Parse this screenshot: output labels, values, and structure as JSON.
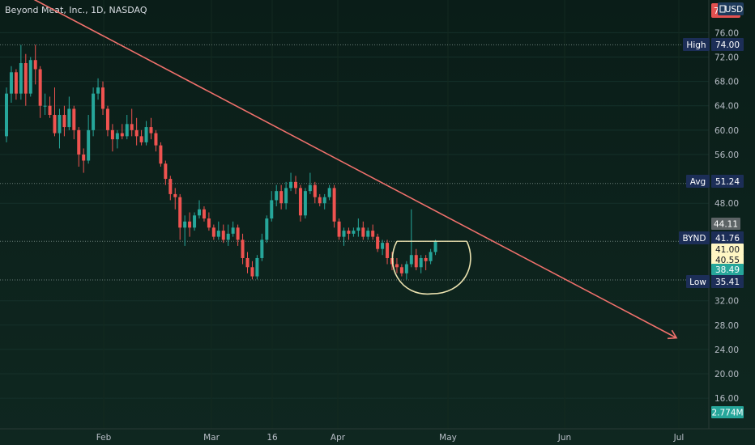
{
  "header": {
    "title": "Beyond Meat, Inc., 1D, NASDAQ",
    "currency": "USD",
    "top_tag": "79.52"
  },
  "chart_data": {
    "type": "candlestick",
    "symbol": "BYND",
    "title": "Beyond Meat, Inc., 1D, NASDAQ",
    "currency": "USD",
    "y_ticks": [
      16,
      20,
      24,
      28,
      32,
      48,
      56,
      60,
      64,
      68,
      72,
      76
    ],
    "y_range": [
      13.5,
      79.5
    ],
    "x_ticks": [
      "Feb",
      "Mar",
      "16",
      "Apr",
      "May",
      "Jun",
      "Jul"
    ],
    "price_tags": {
      "high": {
        "label": "High",
        "value": "74.00"
      },
      "avg": {
        "label": "Avg",
        "value": "51.24"
      },
      "last": {
        "label": "BYND",
        "value": "41.76"
      },
      "low": {
        "label": "Low",
        "value": "35.41"
      },
      "ref": "44.11",
      "high_level": "41.00",
      "mid_level": "40.55",
      "low_level": "38.49"
    },
    "volume": "2.774M",
    "colors": {
      "up": "#26a69a",
      "down": "#ef5350",
      "trendline": "#f0716c",
      "annotation": "#ece3b0"
    },
    "candles": [
      [
        59.0,
        67.0,
        58.0,
        66.0
      ],
      [
        66.0,
        70.5,
        64.5,
        69.5
      ],
      [
        69.5,
        70.0,
        65.0,
        66.0
      ],
      [
        66.0,
        74.0,
        65.0,
        71.0
      ],
      [
        71.0,
        72.5,
        64.0,
        66.0
      ],
      [
        66.0,
        72.0,
        65.5,
        71.5
      ],
      [
        71.5,
        74.0,
        67.5,
        70.0
      ],
      [
        70.0,
        70.5,
        62.0,
        64.0
      ],
      [
        64.0,
        66.0,
        62.5,
        64.0
      ],
      [
        64.0,
        65.5,
        62.0,
        62.5
      ],
      [
        62.5,
        67.0,
        59.0,
        59.5
      ],
      [
        59.5,
        63.5,
        57.0,
        62.5
      ],
      [
        62.5,
        64.0,
        59.0,
        60.5
      ],
      [
        60.5,
        65.5,
        60.0,
        63.5
      ],
      [
        63.5,
        64.0,
        58.5,
        60.0
      ],
      [
        60.0,
        60.5,
        54.0,
        56.0
      ],
      [
        56.0,
        57.0,
        53.0,
        55.0
      ],
      [
        55.0,
        62.5,
        54.5,
        60.0
      ],
      [
        60.0,
        67.0,
        59.0,
        66.0
      ],
      [
        66.0,
        68.5,
        65.0,
        67.0
      ],
      [
        67.0,
        68.0,
        62.5,
        63.5
      ],
      [
        63.5,
        64.0,
        59.0,
        60.0
      ],
      [
        60.0,
        61.0,
        56.5,
        58.5
      ],
      [
        58.5,
        60.0,
        57.0,
        59.5
      ],
      [
        59.5,
        61.0,
        58.5,
        59.0
      ],
      [
        59.0,
        62.5,
        58.5,
        61.0
      ],
      [
        61.0,
        63.5,
        59.0,
        60.0
      ],
      [
        60.0,
        62.0,
        57.5,
        59.0
      ],
      [
        59.0,
        60.0,
        57.5,
        58.0
      ],
      [
        58.0,
        61.5,
        57.5,
        60.5
      ],
      [
        60.5,
        62.0,
        58.5,
        59.5
      ],
      [
        59.5,
        60.0,
        56.5,
        57.5
      ],
      [
        57.5,
        58.0,
        54.0,
        54.5
      ],
      [
        54.5,
        55.0,
        51.0,
        52.0
      ],
      [
        52.0,
        52.5,
        48.5,
        49.5
      ],
      [
        49.5,
        50.5,
        47.0,
        49.0
      ],
      [
        49.0,
        49.5,
        42.0,
        44.0
      ],
      [
        44.0,
        46.0,
        41.0,
        45.0
      ],
      [
        45.0,
        46.5,
        42.5,
        44.0
      ],
      [
        44.0,
        46.5,
        43.5,
        46.0
      ],
      [
        46.0,
        48.5,
        45.5,
        47.0
      ],
      [
        47.0,
        47.5,
        45.0,
        45.5
      ],
      [
        45.5,
        46.5,
        43.5,
        44.0
      ],
      [
        44.0,
        44.5,
        42.0,
        42.5
      ],
      [
        42.5,
        45.0,
        42.0,
        43.5
      ],
      [
        43.5,
        44.5,
        41.5,
        42.0
      ],
      [
        42.0,
        44.5,
        41.0,
        43.0
      ],
      [
        43.0,
        45.0,
        42.5,
        44.0
      ],
      [
        44.0,
        44.5,
        41.0,
        42.0
      ],
      [
        42.0,
        43.0,
        38.0,
        39.0
      ],
      [
        39.0,
        40.0,
        36.5,
        37.5
      ],
      [
        37.5,
        38.5,
        35.5,
        36.0
      ],
      [
        36.0,
        39.5,
        35.5,
        39.0
      ],
      [
        39.0,
        43.0,
        38.5,
        42.0
      ],
      [
        42.0,
        46.0,
        41.5,
        45.5
      ],
      [
        45.5,
        50.0,
        45.0,
        48.5
      ],
      [
        48.5,
        51.0,
        47.5,
        50.0
      ],
      [
        50.0,
        51.0,
        47.0,
        48.0
      ],
      [
        48.0,
        51.5,
        47.0,
        50.5
      ],
      [
        50.5,
        53.0,
        50.0,
        51.5
      ],
      [
        51.5,
        52.5,
        49.5,
        50.5
      ],
      [
        50.5,
        51.0,
        45.0,
        46.0
      ],
      [
        46.0,
        50.5,
        45.5,
        50.0
      ],
      [
        50.0,
        53.0,
        49.5,
        51.0
      ],
      [
        51.0,
        51.5,
        48.0,
        49.0
      ],
      [
        49.0,
        49.5,
        47.5,
        48.0
      ],
      [
        48.0,
        49.5,
        47.0,
        49.0
      ],
      [
        49.0,
        51.0,
        48.5,
        50.5
      ],
      [
        50.5,
        51.0,
        44.0,
        45.0
      ],
      [
        45.0,
        45.5,
        42.0,
        42.5
      ],
      [
        42.5,
        44.0,
        41.0,
        43.5
      ],
      [
        43.5,
        44.0,
        42.0,
        43.0
      ],
      [
        43.0,
        44.0,
        42.5,
        43.5
      ],
      [
        43.5,
        45.5,
        42.5,
        44.0
      ],
      [
        44.0,
        45.0,
        42.0,
        42.5
      ],
      [
        42.5,
        44.0,
        42.0,
        43.5
      ],
      [
        43.5,
        44.5,
        42.0,
        42.5
      ],
      [
        42.5,
        43.0,
        40.0,
        40.5
      ],
      [
        40.5,
        42.0,
        39.5,
        41.5
      ],
      [
        41.5,
        42.0,
        38.0,
        39.0
      ],
      [
        39.0,
        40.0,
        37.0,
        38.0
      ],
      [
        38.0,
        39.0,
        36.5,
        37.5
      ],
      [
        37.5,
        38.0,
        36.0,
        36.5
      ],
      [
        36.5,
        38.5,
        35.5,
        38.0
      ],
      [
        38.0,
        47.0,
        37.5,
        39.5
      ],
      [
        39.5,
        40.5,
        37.0,
        37.5
      ],
      [
        37.5,
        39.5,
        36.5,
        39.0
      ],
      [
        39.0,
        39.5,
        37.0,
        38.5
      ],
      [
        38.5,
        40.5,
        38.0,
        40.0
      ],
      [
        40.0,
        42.0,
        39.5,
        41.76
      ]
    ],
    "trendline": {
      "start": {
        "index": -10,
        "value": 88.0
      },
      "end": {
        "index": 139,
        "value": 25.9
      }
    },
    "annotations": {
      "resistance_level": 41.76,
      "cup_low": 35.0
    }
  }
}
